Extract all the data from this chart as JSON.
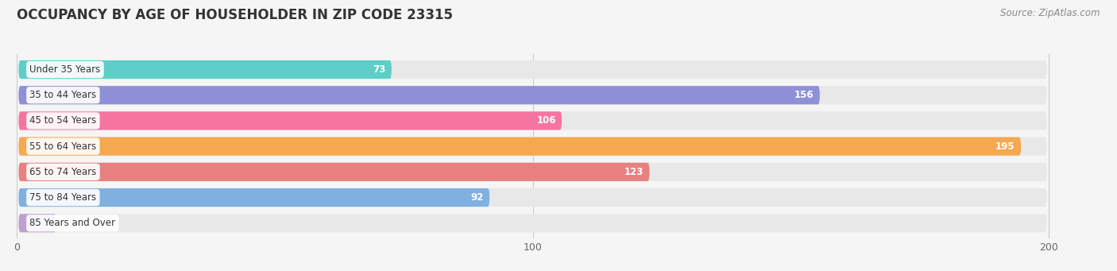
{
  "title": "OCCUPANCY BY AGE OF HOUSEHOLDER IN ZIP CODE 23315",
  "source": "Source: ZipAtlas.com",
  "categories": [
    "Under 35 Years",
    "35 to 44 Years",
    "45 to 54 Years",
    "55 to 64 Years",
    "65 to 74 Years",
    "75 to 84 Years",
    "85 Years and Over"
  ],
  "values": [
    73,
    156,
    106,
    195,
    123,
    92,
    8
  ],
  "bar_colors": [
    "#5ecec8",
    "#9090d8",
    "#f575a0",
    "#f5a850",
    "#e88080",
    "#80b0e0",
    "#c0a0d0"
  ],
  "bg_color": "#e8e8e8",
  "xlim": [
    0,
    210
  ],
  "xlim_display": 200,
  "xticks": [
    0,
    100,
    200
  ],
  "background_color": "#f5f5f5",
  "title_fontsize": 12,
  "source_fontsize": 8.5,
  "label_fontsize": 8.5,
  "value_fontsize": 8.5,
  "value_threshold": 60
}
